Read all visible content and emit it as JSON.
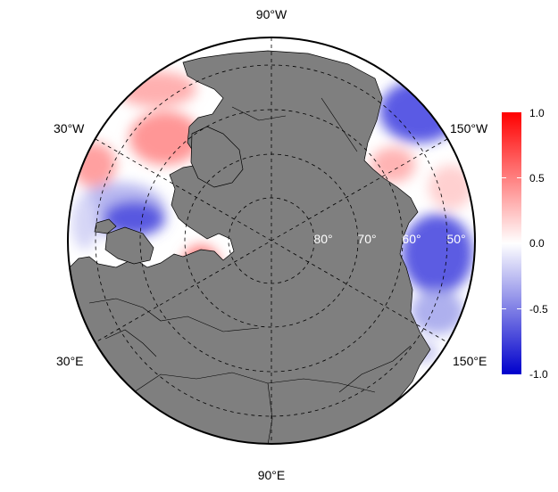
{
  "map": {
    "projection": "north-polar-stereographic",
    "land_color": "#7f7f7f",
    "ocean_nodata_color": "#ffffff",
    "lon_labels": {
      "top": "90°W",
      "bottom": "90°E",
      "upper_left": "30°W",
      "upper_right": "150°W",
      "lower_left": "30°E",
      "lower_right": "150°E"
    },
    "lat_labels": [
      "80°",
      "70°",
      "60°",
      "50°"
    ]
  },
  "colorbar": {
    "min": -1.0,
    "max": 1.0,
    "colors": {
      "low": "#0000cc",
      "mid": "#ffffff",
      "high": "#ff0000"
    },
    "ticks": [
      "1.0",
      "0.5",
      "0.0",
      "-0.5",
      "-1.0"
    ]
  }
}
